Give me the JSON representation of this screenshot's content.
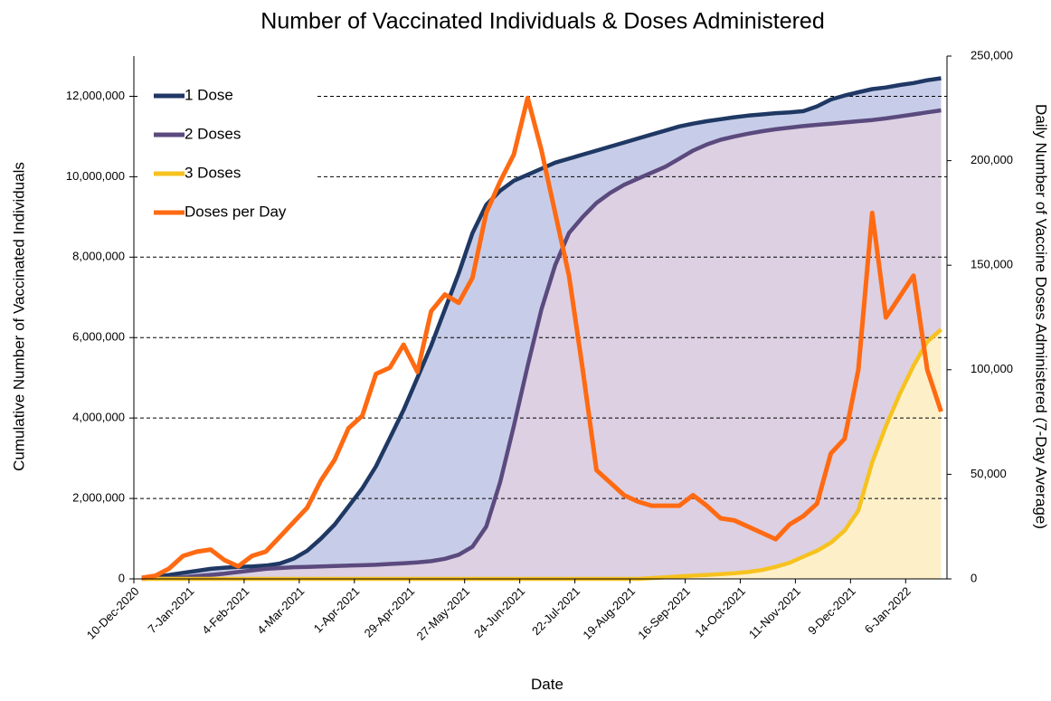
{
  "chart_data": {
    "type": "line",
    "title": "Number of Vaccinated Individuals & Doses Administered",
    "x_label": "Date",
    "y_label": "Cumulative Number of Vaccinated Individuals",
    "y2_label": "Daily Number of Vaccine Doses Administered (7-Day Average)",
    "x": [
      "2020-12-14",
      "2020-12-21",
      "2020-12-28",
      "2021-01-04",
      "2021-01-11",
      "2021-01-18",
      "2021-01-25",
      "2021-02-01",
      "2021-02-08",
      "2021-02-15",
      "2021-02-22",
      "2021-03-01",
      "2021-03-08",
      "2021-03-15",
      "2021-03-22",
      "2021-03-29",
      "2021-04-05",
      "2021-04-12",
      "2021-04-19",
      "2021-04-26",
      "2021-05-03",
      "2021-05-10",
      "2021-05-17",
      "2021-05-24",
      "2021-05-31",
      "2021-06-07",
      "2021-06-14",
      "2021-06-21",
      "2021-06-28",
      "2021-07-05",
      "2021-07-12",
      "2021-07-19",
      "2021-07-26",
      "2021-08-02",
      "2021-08-09",
      "2021-08-16",
      "2021-08-23",
      "2021-08-30",
      "2021-09-06",
      "2021-09-13",
      "2021-09-20",
      "2021-09-27",
      "2021-10-04",
      "2021-10-11",
      "2021-10-18",
      "2021-10-25",
      "2021-11-01",
      "2021-11-08",
      "2021-11-15",
      "2021-11-22",
      "2021-11-29",
      "2021-12-06",
      "2021-12-13",
      "2021-12-20",
      "2021-12-27",
      "2022-01-03",
      "2022-01-10",
      "2022-01-17",
      "2022-01-24"
    ],
    "xlim": [
      "2020-12-10",
      "2022-01-27"
    ],
    "xticks": [
      {
        "value": "2020-12-10",
        "label": "10-Dec-2020"
      },
      {
        "value": "2021-01-07",
        "label": "7-Jan-2021"
      },
      {
        "value": "2021-02-04",
        "label": "4-Feb-2021"
      },
      {
        "value": "2021-03-04",
        "label": "4-Mar-2021"
      },
      {
        "value": "2021-04-01",
        "label": "1-Apr-2021"
      },
      {
        "value": "2021-04-29",
        "label": "29-Apr-2021"
      },
      {
        "value": "2021-05-27",
        "label": "27-May-2021"
      },
      {
        "value": "2021-06-24",
        "label": "24-Jun-2021"
      },
      {
        "value": "2021-07-22",
        "label": "22-Jul-2021"
      },
      {
        "value": "2021-08-19",
        "label": "19-Aug-2021"
      },
      {
        "value": "2021-09-16",
        "label": "16-Sep-2021"
      },
      {
        "value": "2021-10-14",
        "label": "14-Oct-2021"
      },
      {
        "value": "2021-11-11",
        "label": "11-Nov-2021"
      },
      {
        "value": "2021-12-09",
        "label": "9-Dec-2021"
      },
      {
        "value": "2022-01-06",
        "label": "6-Jan-2022"
      }
    ],
    "ylim": [
      0,
      13000000
    ],
    "yticks": [
      0,
      {
        "value": 2000000,
        "label": "2,000,000"
      },
      {
        "value": 4000000,
        "label": "4,000,000"
      },
      {
        "value": 6000000,
        "label": "6,000,000"
      },
      {
        "value": 8000000,
        "label": "8,000,000"
      },
      {
        "value": 10000000,
        "label": "10,000,000"
      },
      {
        "value": 12000000,
        "label": "12,000,000"
      }
    ],
    "y2lim": [
      0,
      250000
    ],
    "y2ticks": [
      0,
      {
        "value": 50000,
        "label": "50,000"
      },
      {
        "value": 100000,
        "label": "100,000"
      },
      {
        "value": 150000,
        "label": "150,000"
      },
      {
        "value": 200000,
        "label": "200,000"
      },
      {
        "value": 250000,
        "label": "250,000"
      }
    ],
    "grid": true,
    "legend": "upper left",
    "series": [
      {
        "name": "1 Dose",
        "color": "#1f3864",
        "fill": "#c7cde8",
        "values": [
          20000,
          50000,
          100000,
          150000,
          200000,
          250000,
          280000,
          300000,
          310000,
          330000,
          380000,
          500000,
          700000,
          1000000,
          1350000,
          1800000,
          2250000,
          2800000,
          3500000,
          4200000,
          5000000,
          5800000,
          6700000,
          7600000,
          8600000,
          9300000,
          9650000,
          9900000,
          10050000,
          10200000,
          10350000,
          10450000,
          10550000,
          10650000,
          10750000,
          10850000,
          10950000,
          11050000,
          11150000,
          11250000,
          11320000,
          11380000,
          11430000,
          11480000,
          11520000,
          11550000,
          11580000,
          11600000,
          11630000,
          11750000,
          11920000,
          12020000,
          12100000,
          12180000,
          12220000,
          12280000,
          12330000,
          12400000,
          12450000
        ]
      },
      {
        "name": "2 Doses",
        "color": "#5b4a7e",
        "fill": "#dcd0e2",
        "values": [
          0,
          10000,
          20000,
          40000,
          70000,
          100000,
          130000,
          170000,
          210000,
          250000,
          270000,
          290000,
          300000,
          310000,
          320000,
          330000,
          340000,
          350000,
          370000,
          390000,
          410000,
          440000,
          500000,
          600000,
          800000,
          1300000,
          2400000,
          3800000,
          5300000,
          6700000,
          7800000,
          8600000,
          9000000,
          9350000,
          9600000,
          9800000,
          9950000,
          10100000,
          10250000,
          10450000,
          10650000,
          10800000,
          10920000,
          11000000,
          11070000,
          11130000,
          11180000,
          11220000,
          11260000,
          11290000,
          11320000,
          11350000,
          11380000,
          11410000,
          11450000,
          11500000,
          11550000,
          11600000,
          11650000
        ]
      },
      {
        "name": "3 Doses",
        "color": "#f7c21f",
        "fill": "#fdf0c9",
        "values": [
          0,
          0,
          0,
          0,
          0,
          0,
          0,
          0,
          0,
          0,
          0,
          0,
          0,
          0,
          0,
          0,
          0,
          0,
          0,
          0,
          0,
          0,
          0,
          0,
          0,
          0,
          0,
          0,
          0,
          0,
          0,
          0,
          0,
          0,
          0,
          0,
          0,
          20000,
          40000,
          60000,
          80000,
          100000,
          120000,
          140000,
          170000,
          220000,
          300000,
          400000,
          550000,
          700000,
          900000,
          1200000,
          1700000,
          2900000,
          3800000,
          4600000,
          5300000,
          5900000,
          6200000
        ]
      },
      {
        "name": "Doses per Day",
        "color": "#ff6a12",
        "axis": "y2",
        "values": [
          500,
          1500,
          5000,
          11000,
          13000,
          14000,
          9000,
          6000,
          11000,
          13000,
          20000,
          27000,
          34000,
          47000,
          57000,
          72000,
          78000,
          98000,
          101000,
          112000,
          99000,
          128000,
          136000,
          132000,
          144000,
          175000,
          190000,
          203000,
          230000,
          205000,
          175000,
          145000,
          100000,
          52000,
          46000,
          40000,
          37000,
          35000,
          35000,
          35000,
          40000,
          35000,
          29000,
          28000,
          25000,
          22000,
          19000,
          26000,
          30000,
          36000,
          60000,
          67000,
          100000,
          175000,
          125000,
          135000,
          145000,
          100000,
          80000
        ]
      }
    ]
  }
}
